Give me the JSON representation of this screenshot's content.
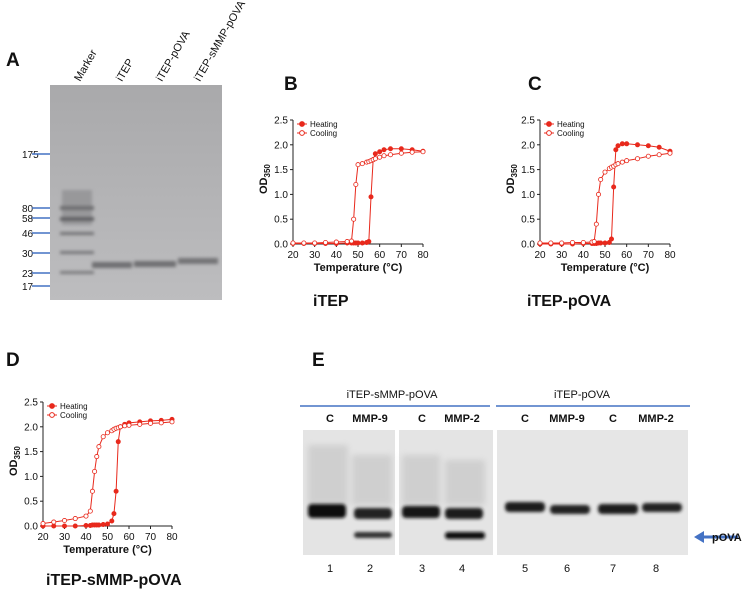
{
  "panel_a": {
    "letter": "A",
    "lanes": [
      "Marker",
      "iTEP",
      "iTEP-pOVA",
      "iTEP-sMMP-pOVA"
    ],
    "markers": [
      "175",
      "80",
      "58",
      "46",
      "30",
      "23",
      "17"
    ]
  },
  "chart_data": [
    {
      "type": "line",
      "letter": "B",
      "caption": "iTEP",
      "x_label": "Temperature (°C)",
      "y_label": "OD",
      "y_label_sub": "350",
      "legend": "upper left",
      "xlim": [
        20,
        80
      ],
      "ylim": [
        0,
        2.5
      ],
      "xticks": [
        20,
        30,
        40,
        50,
        60,
        70,
        80
      ],
      "yticks": [
        {
          "value": 0,
          "label": "0.0"
        },
        {
          "value": 0.5,
          "label": "0.5"
        },
        {
          "value": 1,
          "label": "1.0"
        },
        {
          "value": 1.5,
          "label": "1.5"
        },
        {
          "value": 2,
          "label": "2.0"
        },
        {
          "value": 2.5,
          "label": "2.5"
        }
      ],
      "x": [
        20,
        25,
        30,
        35,
        40,
        45,
        47,
        48,
        49,
        50,
        52,
        54,
        55,
        56,
        57,
        58,
        60,
        62,
        65,
        70,
        75,
        80
      ],
      "series": [
        {
          "name": "Heating",
          "color": "#e8291c",
          "marker": "filled",
          "values": [
            0.01,
            0.01,
            0.01,
            0.01,
            0.01,
            0.02,
            0.02,
            0.02,
            0.02,
            0.02,
            0.02,
            0.03,
            0.05,
            0.95,
            1.7,
            1.82,
            1.86,
            1.9,
            1.92,
            1.92,
            1.9,
            1.87
          ]
        },
        {
          "name": "Cooling",
          "color": "#e8291c",
          "marker": "open",
          "values": [
            0.02,
            0.02,
            0.02,
            0.03,
            0.04,
            0.05,
            0.06,
            0.5,
            1.2,
            1.6,
            1.62,
            1.65,
            1.66,
            1.68,
            1.7,
            1.72,
            1.75,
            1.78,
            1.8,
            1.83,
            1.85,
            1.86
          ]
        }
      ]
    },
    {
      "type": "line",
      "letter": "C",
      "caption": "iTEP-pOVA",
      "x_label": "Temperature (°C)",
      "y_label": "OD",
      "y_label_sub": "350",
      "legend": "upper left",
      "xlim": [
        20,
        80
      ],
      "ylim": [
        0,
        2.5
      ],
      "xticks": [
        20,
        30,
        40,
        50,
        60,
        70,
        80
      ],
      "yticks": [
        {
          "value": 0,
          "label": "0.0"
        },
        {
          "value": 0.5,
          "label": "0.5"
        },
        {
          "value": 1,
          "label": "1.0"
        },
        {
          "value": 1.5,
          "label": "1.5"
        },
        {
          "value": 2,
          "label": "2.0"
        },
        {
          "value": 2.5,
          "label": "2.5"
        }
      ],
      "x": [
        20,
        25,
        30,
        35,
        40,
        44,
        45,
        46,
        47,
        48,
        50,
        52,
        53,
        54,
        55,
        56,
        58,
        60,
        65,
        70,
        75,
        80
      ],
      "series": [
        {
          "name": "Heating",
          "color": "#e8291c",
          "marker": "filled",
          "values": [
            0,
            0,
            0,
            0,
            0.01,
            0.01,
            0.01,
            0.01,
            0.02,
            0.02,
            0.02,
            0.03,
            0.1,
            1.15,
            1.9,
            1.98,
            2.02,
            2.02,
            2.0,
            1.98,
            1.95,
            1.87
          ]
        },
        {
          "name": "Cooling",
          "color": "#e8291c",
          "marker": "open",
          "values": [
            0.02,
            0.02,
            0.02,
            0.03,
            0.03,
            0.04,
            0.05,
            0.4,
            1.0,
            1.3,
            1.45,
            1.52,
            1.55,
            1.57,
            1.6,
            1.62,
            1.65,
            1.68,
            1.72,
            1.77,
            1.8,
            1.83
          ]
        }
      ]
    },
    {
      "type": "line",
      "letter": "D",
      "caption": "iTEP-sMMP-pOVA",
      "x_label": "Temperature (°C)",
      "y_label": "OD",
      "y_label_sub": "350",
      "legend": "upper left",
      "xlim": [
        20,
        80
      ],
      "ylim": [
        0,
        2.5
      ],
      "xticks": [
        20,
        30,
        40,
        50,
        60,
        70,
        80
      ],
      "yticks": [
        {
          "value": 0,
          "label": "0.0"
        },
        {
          "value": 0.5,
          "label": "0.5"
        },
        {
          "value": 1,
          "label": "1.0"
        },
        {
          "value": 1.5,
          "label": "1.5"
        },
        {
          "value": 2,
          "label": "2.0"
        },
        {
          "value": 2.5,
          "label": "2.5"
        }
      ],
      "x": [
        20,
        25,
        30,
        35,
        40,
        42,
        43,
        44,
        45,
        46,
        48,
        50,
        52,
        53,
        54,
        55,
        56,
        58,
        60,
        65,
        70,
        75,
        80
      ],
      "series": [
        {
          "name": "Heating",
          "color": "#e8291c",
          "marker": "filled",
          "values": [
            0,
            0,
            0,
            0,
            0.01,
            0.01,
            0.02,
            0.02,
            0.02,
            0.02,
            0.03,
            0.04,
            0.1,
            0.25,
            0.7,
            1.7,
            2.0,
            2.05,
            2.08,
            2.1,
            2.12,
            2.13,
            2.15
          ]
        },
        {
          "name": "Cooling",
          "color": "#e8291c",
          "marker": "open",
          "values": [
            0.05,
            0.08,
            0.11,
            0.15,
            0.2,
            0.3,
            0.7,
            1.1,
            1.4,
            1.6,
            1.8,
            1.88,
            1.92,
            1.95,
            1.97,
            1.98,
            2.0,
            2.02,
            2.03,
            2.05,
            2.07,
            2.08,
            2.1
          ]
        }
      ]
    }
  ],
  "panel_e": {
    "letter": "E",
    "groups": [
      "iTEP-sMMP-pOVA",
      "iTEP-pOVA"
    ],
    "lanes": [
      "C",
      "MMP-9",
      "C",
      "MMP-2",
      "C",
      "MMP-9",
      "C",
      "MMP-2"
    ],
    "lane_numbers": [
      "1",
      "2",
      "3",
      "4",
      "5",
      "6",
      "7",
      "8"
    ],
    "arrow_label": "pOVA"
  }
}
